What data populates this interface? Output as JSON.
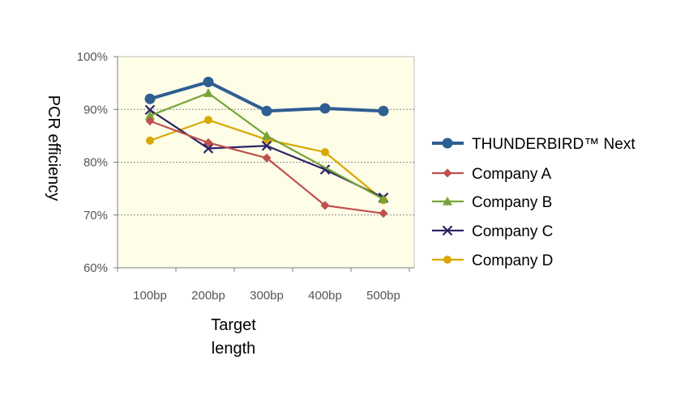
{
  "chart_data": {
    "type": "line",
    "xlabel_line1": "Target",
    "xlabel_line2": "length",
    "ylabel": "PCR efficiency",
    "categories": [
      "100bp",
      "200bp",
      "300bp",
      "400bp",
      "500bp"
    ],
    "ylim": [
      60,
      100
    ],
    "yticks": [
      "60%",
      "70%",
      "80%",
      "90%",
      "100%"
    ],
    "ytick_values": [
      60,
      70,
      80,
      90,
      100
    ],
    "plot_background": "#fdfde8",
    "grid": "dashed horizontal",
    "legend_position": "right",
    "series": [
      {
        "name": "THUNDERBIRD™ Next",
        "values": [
          92.0,
          95.2,
          89.7,
          90.2,
          89.7
        ],
        "color": "#2e5e92",
        "marker": "circle",
        "label_color": "#3b3be6"
      },
      {
        "name": "Company A",
        "values": [
          87.8,
          83.7,
          80.8,
          71.8,
          70.3
        ],
        "color": "#c0504d",
        "marker": "diamond",
        "label_color": "#000000"
      },
      {
        "name": "Company B",
        "values": [
          88.8,
          93.1,
          85.0,
          null,
          73.0
        ],
        "color": "#77a33a",
        "marker": "triangle",
        "label_color": "#000000"
      },
      {
        "name": "Company C",
        "values": [
          89.9,
          82.6,
          83.1,
          78.6,
          73.3
        ],
        "color": "#2d2364",
        "marker": "x",
        "label_color": "#000000"
      },
      {
        "name": "Company D",
        "values": [
          84.1,
          88.0,
          84.3,
          81.9,
          72.8
        ],
        "color": "#d9a800",
        "marker": "circle-small",
        "label_color": "#000000"
      }
    ]
  }
}
